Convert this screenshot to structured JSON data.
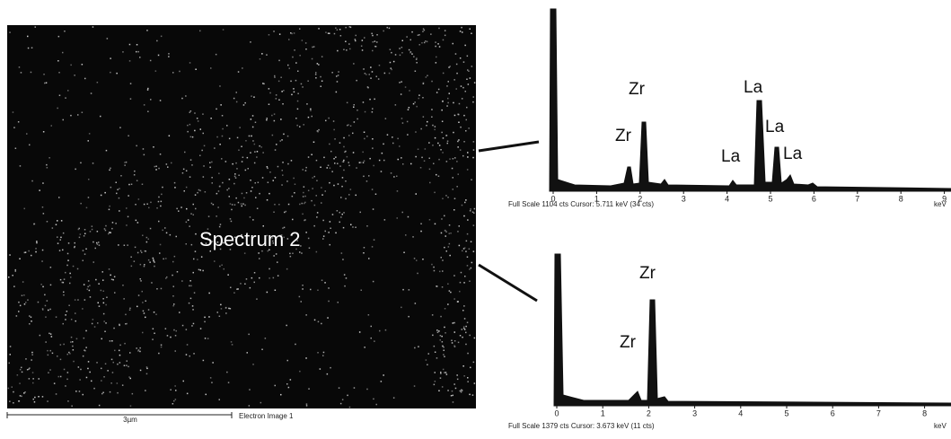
{
  "sem_image": {
    "label": "Spectrum 2",
    "scale_bar": "3µm",
    "caption": "Electron Image 1"
  },
  "spectra": [
    {
      "peak_labels": [
        "Zr",
        "Zr",
        "La",
        "La",
        "La",
        "La"
      ],
      "x_ticks": [
        "0",
        "1",
        "2",
        "3",
        "4",
        "5",
        "6",
        "7",
        "8",
        "9"
      ],
      "footer": "Full Scale 1104 cts  Cursor: 5.711 keV (34 cts)",
      "unit": "keV"
    },
    {
      "peak_labels": [
        "Zr",
        "Zr"
      ],
      "x_ticks": [
        "0",
        "1",
        "2",
        "3",
        "4",
        "5",
        "6",
        "7",
        "8"
      ],
      "footer": "Full Scale 1379 cts  Cursor: 3.673 keV (11 cts)",
      "unit": "keV"
    }
  ]
}
